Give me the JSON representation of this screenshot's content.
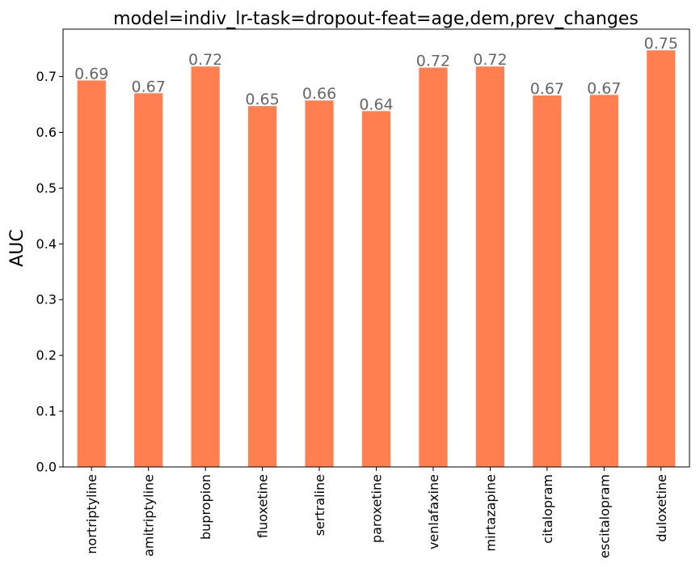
{
  "chart_data": {
    "type": "bar",
    "title": "model=indiv_lr-task=dropout-feat=age,dem,prev_changes",
    "xlabel": "",
    "ylabel": "AUC",
    "categories": [
      "nortriptyline",
      "amitriptyline",
      "bupropion",
      "fluoxetine",
      "sertraline",
      "paroxetine",
      "venlafaxine",
      "mirtazapine",
      "citalopram",
      "escitalopram",
      "duloxetine"
    ],
    "values": [
      0.693,
      0.67,
      0.718,
      0.647,
      0.657,
      0.638,
      0.716,
      0.718,
      0.666,
      0.667,
      0.747
    ],
    "data_labels": [
      "0.69",
      "0.67",
      "0.72",
      "0.65",
      "0.66",
      "0.64",
      "0.72",
      "0.72",
      "0.67",
      "0.67",
      "0.75"
    ],
    "ylim": [
      0,
      0.785
    ],
    "yticks": [
      0.0,
      0.1,
      0.2,
      0.3,
      0.4,
      0.5,
      0.6,
      0.7
    ],
    "ytick_labels": [
      "0.0",
      "0.1",
      "0.2",
      "0.3",
      "0.4",
      "0.5",
      "0.6",
      "0.7"
    ],
    "grid": false,
    "bar_color": "#ff7f50",
    "label_color": "#666666"
  }
}
